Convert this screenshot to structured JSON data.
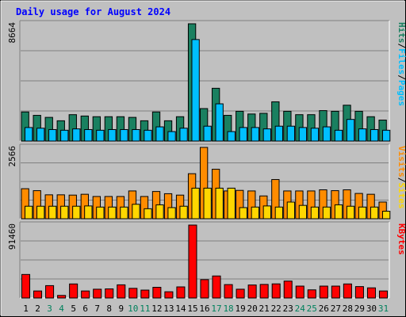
{
  "chart_data": {
    "type": "bar",
    "title": "Daily usage for August 2024",
    "categories": [
      "1",
      "2",
      "3",
      "4",
      "5",
      "6",
      "7",
      "8",
      "9",
      "10",
      "11",
      "12",
      "13",
      "14",
      "15",
      "16",
      "17",
      "18",
      "19",
      "20",
      "21",
      "22",
      "23",
      "24",
      "25",
      "26",
      "27",
      "28",
      "29",
      "30",
      "31"
    ],
    "weekend_days": [
      "3",
      "4",
      "10",
      "11",
      "17",
      "18",
      "24",
      "25",
      "31"
    ],
    "panels": [
      {
        "id": "hits_files_pages",
        "ymax_label": "8664",
        "ylim": [
          0,
          8664
        ],
        "legend": [
          "Pages",
          "Files",
          "Hits"
        ],
        "series": [
          {
            "name": "Hits",
            "color": "#1a8060",
            "values": [
              2150,
              1900,
              1750,
              1500,
              1950,
              1850,
              1800,
              1800,
              1800,
              1750,
              1500,
              2150,
              1500,
              1800,
              8664,
              2400,
              3900,
              1900,
              2200,
              2000,
              2050,
              2900,
              2200,
              1950,
              1950,
              2250,
              2200,
              2650,
              2200,
              1800,
              1550
            ]
          },
          {
            "name": "Files",
            "color": "#00bfff",
            "values": [
              1000,
              950,
              850,
              800,
              900,
              850,
              800,
              850,
              850,
              850,
              800,
              1050,
              700,
              950,
              7500,
              1100,
              2750,
              700,
              1000,
              1000,
              900,
              1100,
              1100,
              1000,
              950,
              1050,
              800,
              1600,
              900,
              850,
              800
            ]
          },
          {
            "name": "Pages",
            "color": "#00bfff",
            "values": [
              0,
              0,
              0,
              0,
              0,
              0,
              0,
              0,
              0,
              0,
              0,
              0,
              0,
              0,
              0,
              0,
              0,
              0,
              0,
              0,
              0,
              0,
              0,
              0,
              0,
              0,
              0,
              0,
              0,
              0,
              0
            ]
          }
        ]
      },
      {
        "id": "visits_sites",
        "ymax_label": "2566",
        "ylim": [
          0,
          2566
        ],
        "legend": [
          "Sites",
          "Visits"
        ],
        "series": [
          {
            "name": "Visits",
            "color": "#ff8c00",
            "values": [
              1080,
              1010,
              860,
              860,
              850,
              880,
              800,
              800,
              800,
              1000,
              800,
              980,
              900,
              850,
              1620,
              2566,
              1780,
              1000,
              1020,
              1000,
              820,
              1410,
              1000,
              1000,
              1000,
              1040,
              1010,
              1040,
              910,
              880,
              600
            ]
          },
          {
            "name": "Sites",
            "color": "#ffd700",
            "values": [
              450,
              450,
              450,
              450,
              450,
              460,
              420,
              420,
              420,
              520,
              360,
              500,
              400,
              450,
              1100,
              1100,
              1100,
              1100,
              400,
              420,
              460,
              420,
              600,
              480,
              420,
              420,
              500,
              450,
              420,
              420,
              270
            ]
          }
        ]
      },
      {
        "id": "kbytes",
        "ymax_label": "91460",
        "ylim": [
          0,
          91460
        ],
        "legend": [
          "KBytes"
        ],
        "series": [
          {
            "name": "KBytes",
            "color": "#ff0000",
            "values": [
              29500,
              8800,
              15500,
              3200,
              17600,
              8800,
              11000,
              11400,
              16500,
              12100,
              9900,
              13400,
              7800,
              13900,
              91460,
              23000,
              27600,
              16800,
              11000,
              16300,
              17000,
              17700,
              21200,
              14900,
              10200,
              14900,
              14900,
              17600,
              14300,
              12700,
              8800
            ]
          }
        ]
      }
    ]
  },
  "colors": {
    "title": "#0000ff",
    "weekday_label": "#000000",
    "weekend_label": "#00805c",
    "hits": "#1a8060",
    "files": "#00bfff",
    "sites": "#ffd700",
    "visits": "#ff8c00",
    "kbytes": "#ff0000"
  }
}
